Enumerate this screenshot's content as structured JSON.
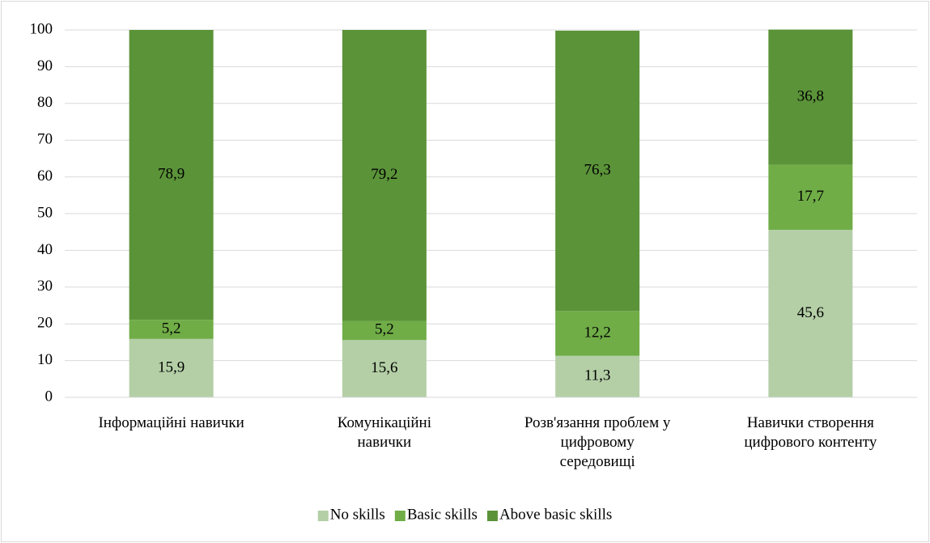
{
  "chart_data": {
    "type": "stacked_bar",
    "categories": [
      "Інформаційні навички",
      "Комунікаційні\nнавички",
      "Розв'язання проблем у\nцифровому\nсередовищі",
      "Навички створення\nцифрового контенту"
    ],
    "series": [
      {
        "name": "No skills",
        "color": "#b4cfa6",
        "values": [
          15.9,
          15.6,
          11.3,
          45.6
        ],
        "value_labels": [
          "15,9",
          "15,6",
          "11,3",
          "45,6"
        ]
      },
      {
        "name": "Basic skills",
        "color": "#70ad47",
        "values": [
          5.2,
          5.2,
          12.2,
          17.7
        ],
        "value_labels": [
          "5,2",
          "5,2",
          "12,2",
          "17,7"
        ]
      },
      {
        "name": "Above basic skills",
        "color": "#5b9339",
        "values": [
          78.9,
          79.2,
          76.3,
          36.8
        ],
        "value_labels": [
          "78,9",
          "79,2",
          "76,3",
          "36,8"
        ]
      }
    ],
    "ylim": [
      0,
      100
    ],
    "yticks": [
      0,
      10,
      20,
      30,
      40,
      50,
      60,
      70,
      80,
      90,
      100
    ],
    "grid": true,
    "legend": "bottom"
  }
}
